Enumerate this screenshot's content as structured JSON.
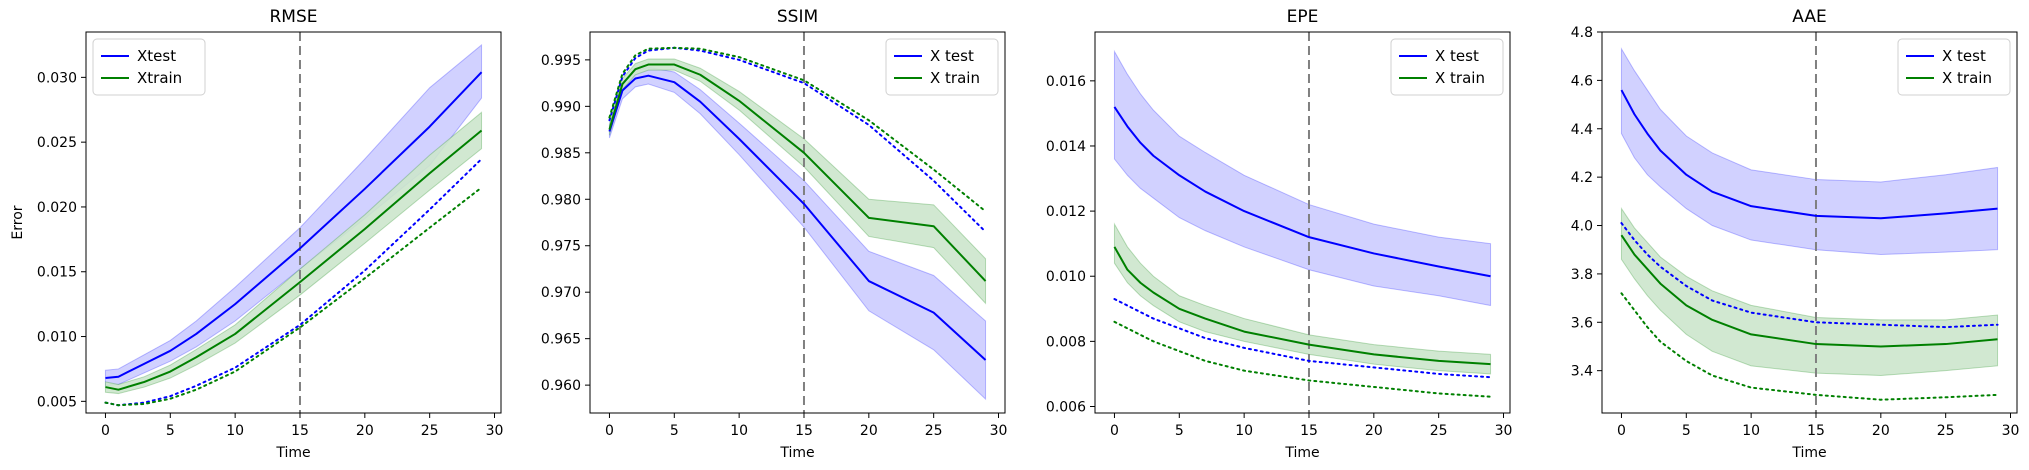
{
  "chart_data": [
    {
      "type": "line",
      "title": "RMSE",
      "xlabel": "Time",
      "ylabel": "Error",
      "xlim": [
        -1.5,
        30.5
      ],
      "ylim": [
        0.0041,
        0.0335
      ],
      "xticks": [
        0,
        5,
        10,
        15,
        20,
        25,
        30
      ],
      "yticks": [
        0.005,
        0.01,
        0.015,
        0.02,
        0.025,
        0.03
      ],
      "ytick_labels": [
        "0.005",
        "0.010",
        "0.015",
        "0.020",
        "0.025",
        "0.030"
      ],
      "vline_x": 15,
      "legend_placement": "upper-left",
      "colors": {
        "test": "#0000ff",
        "train": "#008000",
        "test_band": "#ccccff",
        "train_band": "#cce6cc",
        "vline": "#808080"
      },
      "legend": [
        {
          "label": "Xtest",
          "color": "#0000ff"
        },
        {
          "label": "Xtrain",
          "color": "#008000"
        }
      ],
      "x": [
        0,
        1,
        3,
        5,
        7,
        10,
        15,
        20,
        25,
        29
      ],
      "series": [
        {
          "name": "Xtest",
          "style": "solid",
          "color": "#0000ff",
          "values": [
            0.0068,
            0.0069,
            0.0079,
            0.0089,
            0.0102,
            0.0125,
            0.0168,
            0.0214,
            0.0262,
            0.0304
          ],
          "band_lower": [
            0.0062,
            0.0063,
            0.0072,
            0.0081,
            0.0092,
            0.0112,
            0.0152,
            0.0191,
            0.0232,
            0.0284
          ],
          "band_upper": [
            0.0074,
            0.0075,
            0.0086,
            0.0097,
            0.0112,
            0.0138,
            0.0184,
            0.0237,
            0.0292,
            0.0325
          ]
        },
        {
          "name": "Xtrain",
          "style": "solid",
          "color": "#008000",
          "values": [
            0.0061,
            0.0059,
            0.0065,
            0.0073,
            0.0084,
            0.0102,
            0.0142,
            0.0183,
            0.0226,
            0.0259
          ],
          "band_lower": [
            0.0057,
            0.0056,
            0.0061,
            0.0068,
            0.0078,
            0.0095,
            0.0132,
            0.0172,
            0.0213,
            0.0245
          ],
          "band_upper": [
            0.0065,
            0.0063,
            0.0069,
            0.0078,
            0.009,
            0.0109,
            0.0152,
            0.0194,
            0.024,
            0.0273
          ]
        },
        {
          "style": "dotted",
          "color": "#0000ff",
          "values": [
            0.0049,
            0.0047,
            0.0049,
            0.0054,
            0.0062,
            0.0076,
            0.0109,
            0.0151,
            0.0198,
            0.0237
          ]
        },
        {
          "style": "dotted",
          "color": "#008000",
          "values": [
            0.0049,
            0.0047,
            0.0048,
            0.0052,
            0.0059,
            0.0073,
            0.0107,
            0.0145,
            0.0184,
            0.0215
          ]
        }
      ]
    },
    {
      "type": "line",
      "title": "SSIM",
      "xlabel": "Time",
      "ylabel": "",
      "xlim": [
        -1.5,
        30.5
      ],
      "ylim": [
        0.957,
        0.998
      ],
      "xticks": [
        0,
        5,
        10,
        15,
        20,
        25,
        30
      ],
      "yticks": [
        0.96,
        0.965,
        0.97,
        0.975,
        0.98,
        0.985,
        0.99,
        0.995
      ],
      "ytick_labels": [
        "0.960",
        "0.965",
        "0.970",
        "0.975",
        "0.980",
        "0.985",
        "0.990",
        "0.995"
      ],
      "vline_x": 15,
      "legend_placement": "upper-right",
      "colors": {
        "test": "#0000ff",
        "train": "#008000",
        "test_band": "#ccccff",
        "train_band": "#cce6cc",
        "vline": "#808080"
      },
      "legend": [
        {
          "label": "X test",
          "color": "#0000ff"
        },
        {
          "label": "X train",
          "color": "#008000"
        }
      ],
      "x": [
        0,
        1,
        2,
        3,
        5,
        7,
        10,
        15,
        20,
        25,
        29
      ],
      "series": [
        {
          "name": "X test",
          "style": "solid",
          "color": "#0000ff",
          "values": [
            0.9873,
            0.9917,
            0.993,
            0.9933,
            0.9926,
            0.9905,
            0.9865,
            0.9795,
            0.9712,
            0.9678,
            0.9627
          ],
          "band_lower": [
            0.9866,
            0.9908,
            0.9921,
            0.9924,
            0.9915,
            0.9892,
            0.9848,
            0.977,
            0.968,
            0.9638,
            0.9585
          ],
          "band_upper": [
            0.988,
            0.9926,
            0.9939,
            0.9942,
            0.9937,
            0.9918,
            0.9882,
            0.982,
            0.9744,
            0.9718,
            0.9669
          ]
        },
        {
          "name": "X train",
          "style": "solid",
          "color": "#008000",
          "values": [
            0.9875,
            0.9924,
            0.994,
            0.9945,
            0.9945,
            0.9934,
            0.9906,
            0.985,
            0.978,
            0.9771,
            0.9712
          ],
          "band_lower": [
            0.9869,
            0.9918,
            0.9934,
            0.9939,
            0.9939,
            0.9927,
            0.9896,
            0.9835,
            0.976,
            0.9748,
            0.9688
          ],
          "band_upper": [
            0.9881,
            0.993,
            0.9946,
            0.9951,
            0.9951,
            0.9941,
            0.9916,
            0.9865,
            0.98,
            0.9794,
            0.9736
          ]
        },
        {
          "style": "dotted",
          "color": "#0000ff",
          "values": [
            0.9885,
            0.9932,
            0.9952,
            0.996,
            0.9963,
            0.996,
            0.995,
            0.9925,
            0.988,
            0.982,
            0.9765
          ]
        },
        {
          "style": "dotted",
          "color": "#008000",
          "values": [
            0.9888,
            0.9935,
            0.9955,
            0.9962,
            0.9963,
            0.9962,
            0.9953,
            0.9928,
            0.9885,
            0.9832,
            0.9787
          ]
        }
      ]
    },
    {
      "type": "line",
      "title": "EPE",
      "xlabel": "Time",
      "ylabel": "",
      "xlim": [
        -1.5,
        30.5
      ],
      "ylim": [
        0.0058,
        0.0175
      ],
      "xticks": [
        0,
        5,
        10,
        15,
        20,
        25,
        30
      ],
      "yticks": [
        0.006,
        0.008,
        0.01,
        0.012,
        0.014,
        0.016
      ],
      "ytick_labels": [
        "0.006",
        "0.008",
        "0.010",
        "0.012",
        "0.014",
        "0.016"
      ],
      "vline_x": 15,
      "legend_placement": "upper-right",
      "colors": {
        "test": "#0000ff",
        "train": "#008000",
        "test_band": "#ccccff",
        "train_band": "#cce6cc",
        "vline": "#808080"
      },
      "legend": [
        {
          "label": "X test",
          "color": "#0000ff"
        },
        {
          "label": "X train",
          "color": "#008000"
        }
      ],
      "x": [
        0,
        1,
        2,
        3,
        5,
        7,
        10,
        15,
        20,
        25,
        29
      ],
      "series": [
        {
          "name": "X test",
          "style": "solid",
          "color": "#0000ff",
          "values": [
            0.0152,
            0.0146,
            0.0141,
            0.0137,
            0.0131,
            0.0126,
            0.012,
            0.0112,
            0.0107,
            0.0103,
            0.01
          ],
          "band_lower": [
            0.0136,
            0.0131,
            0.0127,
            0.0124,
            0.0118,
            0.0114,
            0.0109,
            0.0102,
            0.0097,
            0.0094,
            0.0091
          ],
          "band_upper": [
            0.0169,
            0.0162,
            0.0156,
            0.0151,
            0.0143,
            0.0138,
            0.0131,
            0.0122,
            0.0116,
            0.0112,
            0.011
          ]
        },
        {
          "name": "X train",
          "style": "solid",
          "color": "#008000",
          "values": [
            0.0109,
            0.0102,
            0.0098,
            0.0095,
            0.009,
            0.0087,
            0.0083,
            0.0079,
            0.0076,
            0.0074,
            0.0073
          ],
          "band_lower": [
            0.0104,
            0.0098,
            0.0094,
            0.0091,
            0.0086,
            0.0083,
            0.008,
            0.0076,
            0.0073,
            0.0071,
            0.007
          ],
          "band_upper": [
            0.0116,
            0.0109,
            0.0104,
            0.01,
            0.0094,
            0.0091,
            0.0087,
            0.0082,
            0.0079,
            0.0077,
            0.0076
          ]
        },
        {
          "style": "dotted",
          "color": "#0000ff",
          "values": [
            0.0093,
            0.0091,
            0.0089,
            0.0087,
            0.0084,
            0.0081,
            0.0078,
            0.0074,
            0.0072,
            0.007,
            0.0069
          ]
        },
        {
          "style": "dotted",
          "color": "#008000",
          "values": [
            0.0086,
            0.0084,
            0.0082,
            0.008,
            0.0077,
            0.0074,
            0.0071,
            0.0068,
            0.0066,
            0.0064,
            0.0063
          ]
        }
      ]
    },
    {
      "type": "line",
      "title": "AAE",
      "xlabel": "Time",
      "ylabel": "",
      "xlim": [
        -1.5,
        30.5
      ],
      "ylim": [
        3.225,
        4.8
      ],
      "xticks": [
        0,
        5,
        10,
        15,
        20,
        25,
        30
      ],
      "yticks": [
        3.4,
        3.6,
        3.8,
        4.0,
        4.2,
        4.4,
        4.6,
        4.8
      ],
      "ytick_labels": [
        "3.4",
        "3.6",
        "3.8",
        "4.0",
        "4.2",
        "4.4",
        "4.6",
        "4.8"
      ],
      "vline_x": 15,
      "legend_placement": "upper-right",
      "colors": {
        "test": "#0000ff",
        "train": "#008000",
        "test_band": "#ccccff",
        "train_band": "#cce6cc",
        "vline": "#808080"
      },
      "legend": [
        {
          "label": "X test",
          "color": "#0000ff"
        },
        {
          "label": "X train",
          "color": "#008000"
        }
      ],
      "x": [
        0,
        1,
        2,
        3,
        5,
        7,
        10,
        15,
        20,
        25,
        29
      ],
      "series": [
        {
          "name": "X test",
          "style": "solid",
          "color": "#0000ff",
          "values": [
            4.56,
            4.46,
            4.38,
            4.31,
            4.21,
            4.14,
            4.08,
            4.04,
            4.03,
            4.05,
            4.07
          ],
          "band_lower": [
            4.38,
            4.28,
            4.21,
            4.16,
            4.07,
            4.0,
            3.94,
            3.9,
            3.88,
            3.89,
            3.9
          ],
          "band_upper": [
            4.73,
            4.64,
            4.56,
            4.48,
            4.37,
            4.3,
            4.23,
            4.19,
            4.18,
            4.21,
            4.24
          ]
        },
        {
          "name": "X train",
          "style": "solid",
          "color": "#008000",
          "values": [
            3.96,
            3.88,
            3.82,
            3.76,
            3.67,
            3.61,
            3.55,
            3.51,
            3.5,
            3.51,
            3.53
          ],
          "band_lower": [
            3.86,
            3.78,
            3.71,
            3.65,
            3.55,
            3.48,
            3.42,
            3.39,
            3.38,
            3.4,
            3.42
          ],
          "band_upper": [
            4.07,
            3.99,
            3.93,
            3.87,
            3.79,
            3.73,
            3.67,
            3.62,
            3.61,
            3.61,
            3.63
          ]
        },
        {
          "style": "dotted",
          "color": "#0000ff",
          "values": [
            4.01,
            3.94,
            3.88,
            3.83,
            3.75,
            3.69,
            3.64,
            3.6,
            3.59,
            3.58,
            3.59
          ]
        },
        {
          "style": "dotted",
          "color": "#008000",
          "values": [
            3.72,
            3.65,
            3.58,
            3.52,
            3.44,
            3.38,
            3.33,
            3.3,
            3.28,
            3.29,
            3.3
          ]
        }
      ]
    }
  ]
}
